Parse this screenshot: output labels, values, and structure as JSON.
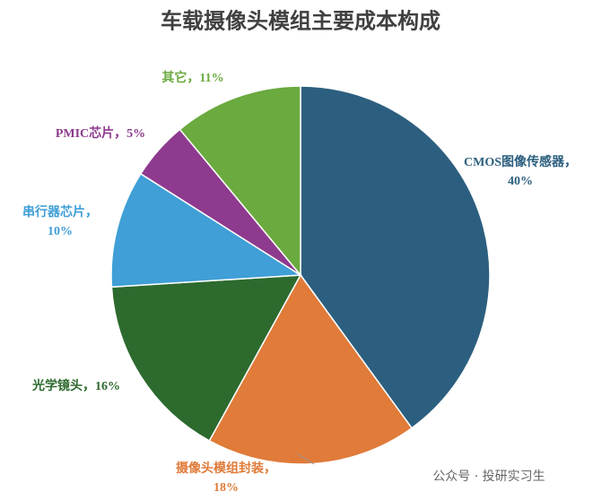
{
  "chart_data": {
    "type": "pie",
    "title": "车载摄像头模组主要成本构成",
    "categories": [
      "CMOS图像传感器",
      "摄像头模组封装",
      "光学镜头",
      "串行器芯片",
      "PMIC芯片",
      "其它"
    ],
    "separator": "，",
    "values": [
      40,
      18,
      16,
      10,
      5,
      11
    ],
    "value_labels": [
      "40%",
      "18%",
      "16%",
      "10%",
      "5%",
      "11%"
    ],
    "colors": [
      "#2c5f7f",
      "#e07b39",
      "#2d6a2e",
      "#3f9fd6",
      "#8e3a8e",
      "#6aaa3f"
    ],
    "watermark": "公众号 · 投研实习生"
  }
}
